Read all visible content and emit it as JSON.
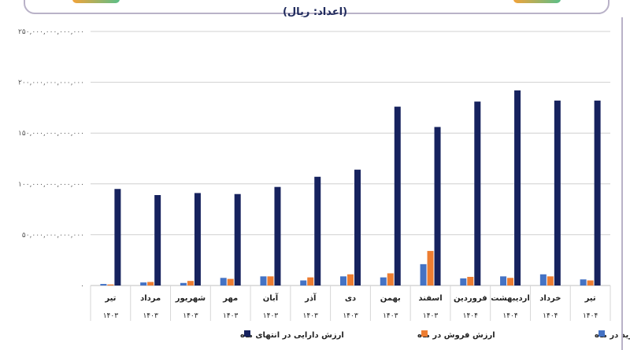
{
  "header": {
    "unit_label": "(اعداد: ریال)"
  },
  "colors": {
    "purchase": "#4472c4",
    "sale": "#ed7d31",
    "assets": "#16225e",
    "grid": "#d0d0d0"
  },
  "chart_data": {
    "type": "bar",
    "title": "",
    "unit": "(اعداد: ریال)",
    "ylim": [
      0,
      250000000000000
    ],
    "yticks": [
      {
        "value": 0,
        "label": "۰"
      },
      {
        "value": 50000000000000,
        "label": "۵۰,۰۰۰,۰۰۰,۰۰۰,۰۰۰"
      },
      {
        "value": 100000000000000,
        "label": "۱۰۰,۰۰۰,۰۰۰,۰۰۰,۰۰۰"
      },
      {
        "value": 150000000000000,
        "label": "۱۵۰,۰۰۰,۰۰۰,۰۰۰,۰۰۰"
      },
      {
        "value": 200000000000000,
        "label": "۲۰۰,۰۰۰,۰۰۰,۰۰۰,۰۰۰"
      },
      {
        "value": 250000000000000,
        "label": "۲۵۰,۰۰۰,۰۰۰,۰۰۰,۰۰۰"
      }
    ],
    "grid": true,
    "legend_position": "bottom",
    "categories": [
      {
        "month": "تیر",
        "year": "۱۴۰۳"
      },
      {
        "month": "مرداد",
        "year": "۱۴۰۳"
      },
      {
        "month": "شهریور",
        "year": "۱۴۰۳"
      },
      {
        "month": "مهر",
        "year": "۱۴۰۳"
      },
      {
        "month": "آبان",
        "year": "۱۴۰۳"
      },
      {
        "month": "آذر",
        "year": "۱۴۰۳"
      },
      {
        "month": "دی",
        "year": "۱۴۰۳"
      },
      {
        "month": "بهمن",
        "year": "۱۴۰۳"
      },
      {
        "month": "اسفند",
        "year": "۱۴۰۳"
      },
      {
        "month": "فروردین",
        "year": "۱۴۰۴"
      },
      {
        "month": "اردیبهشت",
        "year": "۱۴۰۴"
      },
      {
        "month": "خرداد",
        "year": "۱۴۰۴"
      },
      {
        "month": "تیر",
        "year": "۱۴۰۴"
      }
    ],
    "series": [
      {
        "name": "ارزش خرید در ماه",
        "color": "#4472c4",
        "values": [
          1500000000000,
          3000000000000,
          2500000000000,
          7500000000000,
          9000000000000,
          5000000000000,
          9000000000000,
          8000000000000,
          21000000000000,
          7000000000000,
          9000000000000,
          11000000000000,
          6000000000000
        ]
      },
      {
        "name": "ارزش فروش در ماه",
        "color": "#ed7d31",
        "values": [
          1000000000000,
          3500000000000,
          4500000000000,
          6500000000000,
          9000000000000,
          8000000000000,
          11000000000000,
          12000000000000,
          34000000000000,
          8500000000000,
          7500000000000,
          9000000000000,
          5000000000000
        ]
      },
      {
        "name": "ارزش دارایی در انتهای ماه",
        "color": "#16225e",
        "values": [
          95000000000000,
          89000000000000,
          91000000000000,
          90000000000000,
          97000000000000,
          107000000000000,
          114000000000000,
          176000000000000,
          156000000000000,
          181000000000000,
          192000000000000,
          182000000000000,
          182000000000000
        ]
      }
    ]
  }
}
